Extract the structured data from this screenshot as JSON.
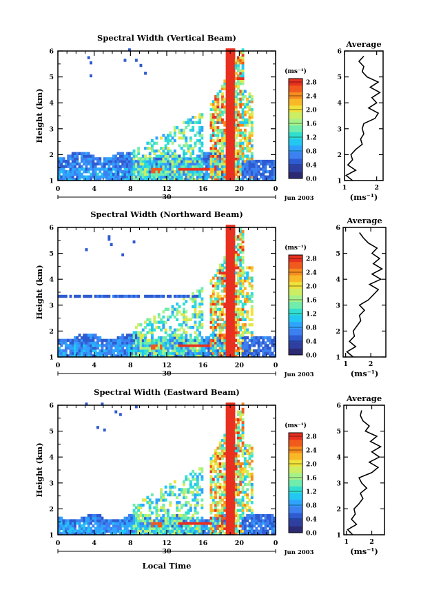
{
  "figure": {
    "xlabel_bottom": "Local Time",
    "date_label": "Jun 2003",
    "day_label": "30"
  },
  "panels": [
    {
      "title": "Spectral Width (Vertical Beam)",
      "avg_title": "Average",
      "ylabel": "Height (km)"
    },
    {
      "title": "Spectral Width (Northward Beam)",
      "avg_title": "Average",
      "ylabel": "Height (km)"
    },
    {
      "title": "Spectral Width (Eastward Beam)",
      "avg_title": "Average",
      "ylabel": "Height (km)"
    }
  ],
  "chart_data": [
    {
      "type": "heatmap",
      "title": "Spectral Width (Vertical Beam)",
      "xlabel": "",
      "ylabel": "Height (km)",
      "xlim": [
        0,
        24
      ],
      "ylim": [
        1,
        6
      ],
      "xticks": [
        "0",
        "4",
        "8",
        "12",
        "16",
        "20",
        "0"
      ],
      "yticks": [
        "1",
        "2",
        "3",
        "4",
        "5",
        "6"
      ],
      "colorbar": {
        "label": "(ms⁻¹)",
        "ticks": [
          "0.0",
          "0.4",
          "0.8",
          "1.2",
          "1.6",
          "2.0",
          "2.4",
          "2.8"
        ],
        "range": [
          0,
          2.9
        ]
      },
      "average_profile": {
        "title": "Average",
        "xlabel": "(ms⁻¹)",
        "xlim": [
          1,
          2.2
        ],
        "xticks": [
          "1",
          "2"
        ],
        "ylim": [
          1,
          6
        ],
        "height": [
          1.0,
          1.2,
          1.4,
          1.6,
          1.8,
          2.0,
          2.2,
          2.4,
          2.6,
          2.8,
          3.0,
          3.2,
          3.4,
          3.6,
          3.8,
          4.0,
          4.2,
          4.4,
          4.6,
          4.8,
          5.0,
          5.2,
          5.4,
          5.6,
          5.8
        ],
        "width": [
          1.25,
          1.05,
          1.35,
          1.1,
          1.25,
          1.2,
          1.35,
          1.55,
          1.5,
          1.6,
          1.55,
          1.6,
          1.95,
          2.05,
          1.75,
          2.0,
          1.85,
          2.1,
          1.8,
          2.05,
          1.7,
          1.55,
          1.6,
          1.45,
          1.6
        ]
      }
    },
    {
      "type": "heatmap",
      "title": "Spectral Width (Northward Beam)",
      "xlabel": "",
      "ylabel": "Height (km)",
      "xlim": [
        0,
        24
      ],
      "ylim": [
        1,
        6
      ],
      "xticks": [
        "0",
        "4",
        "8",
        "12",
        "16",
        "20",
        "0"
      ],
      "yticks": [
        "1",
        "2",
        "3",
        "4",
        "5",
        "6"
      ],
      "colorbar": {
        "label": "(ms⁻¹)",
        "ticks": [
          "0.0",
          "0.4",
          "0.8",
          "1.2",
          "1.6",
          "2.0",
          "2.4",
          "2.8"
        ],
        "range": [
          0,
          2.9
        ]
      },
      "average_profile": {
        "title": "Average",
        "xlabel": "(ms⁻¹)",
        "xlim": [
          0.9,
          2.6
        ],
        "xticks": [
          "1",
          "2"
        ],
        "ylim": [
          1,
          6
        ],
        "height": [
          1.0,
          1.2,
          1.4,
          1.6,
          1.8,
          2.0,
          2.2,
          2.4,
          2.6,
          2.8,
          3.0,
          3.2,
          3.4,
          3.6,
          3.8,
          4.0,
          4.2,
          4.4,
          4.6,
          4.8,
          5.0,
          5.2,
          5.4,
          5.6,
          5.8
        ],
        "width": [
          1.3,
          1.05,
          1.4,
          1.15,
          1.35,
          1.3,
          1.45,
          1.6,
          1.55,
          1.75,
          1.55,
          1.9,
          2.1,
          2.3,
          1.95,
          2.4,
          2.05,
          2.45,
          2.1,
          2.35,
          2.05,
          2.25,
          1.9,
          1.7,
          1.55
        ]
      }
    },
    {
      "type": "heatmap",
      "title": "Spectral Width (Eastward Beam)",
      "xlabel": "Local Time",
      "ylabel": "Height (km)",
      "xlim": [
        0,
        24
      ],
      "ylim": [
        1,
        6
      ],
      "xticks": [
        "0",
        "4",
        "8",
        "12",
        "16",
        "20",
        "0"
      ],
      "yticks": [
        "1",
        "2",
        "3",
        "4",
        "5",
        "6"
      ],
      "colorbar": {
        "label": "(ms⁻¹)",
        "ticks": [
          "0.0",
          "0.4",
          "0.8",
          "1.2",
          "1.6",
          "2.0",
          "2.4",
          "2.8"
        ],
        "range": [
          0,
          2.9
        ]
      },
      "average_profile": {
        "title": "Average",
        "xlabel": "(ms⁻¹)",
        "xlim": [
          0.9,
          2.5
        ],
        "xticks": [
          "1",
          "2"
        ],
        "ylim": [
          1,
          6
        ],
        "height": [
          1.0,
          1.2,
          1.4,
          1.6,
          1.8,
          2.0,
          2.2,
          2.4,
          2.6,
          2.8,
          3.0,
          3.2,
          3.4,
          3.6,
          3.8,
          4.0,
          4.2,
          4.4,
          4.6,
          4.8,
          5.0,
          5.2,
          5.4,
          5.6,
          5.8
        ],
        "width": [
          1.25,
          1.05,
          1.4,
          1.2,
          1.35,
          1.3,
          1.5,
          1.65,
          1.55,
          1.8,
          1.6,
          1.5,
          2.0,
          2.25,
          1.9,
          2.3,
          2.0,
          2.35,
          1.95,
          2.2,
          1.75,
          1.9,
          1.65,
          1.55,
          1.6
        ]
      }
    }
  ]
}
